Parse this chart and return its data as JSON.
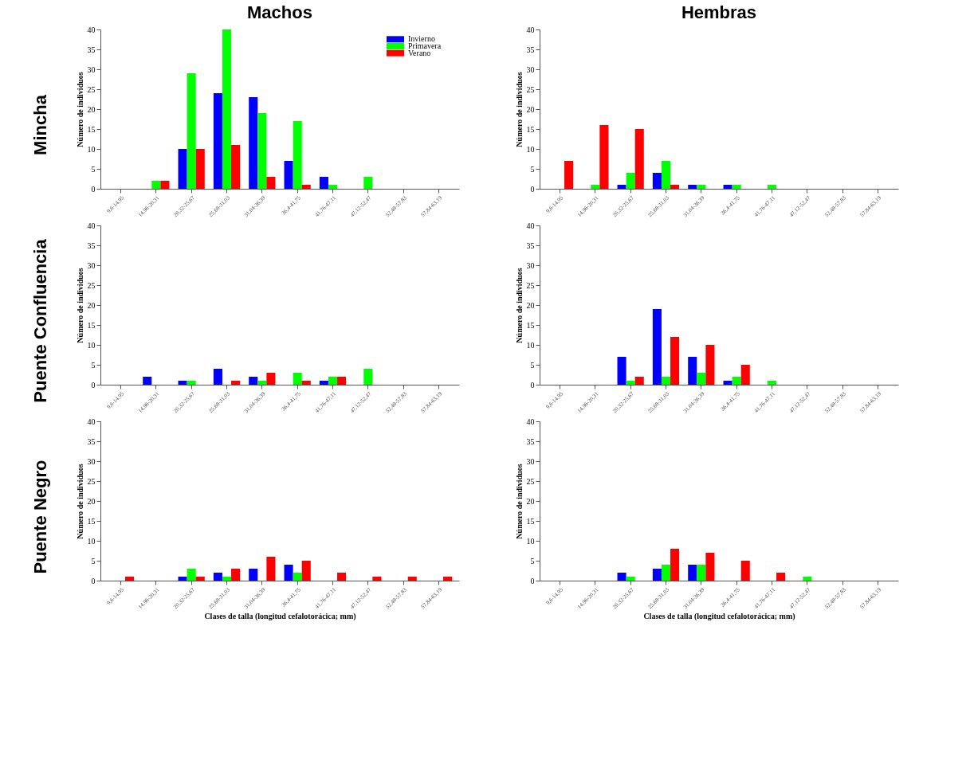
{
  "chart_data": [
    {
      "type": "bar",
      "title": "Machos",
      "annotations": [
        "Mincha"
      ],
      "ylabel": "Número de individuos",
      "categories": [
        "9,6-14,95",
        "14,96-20,31",
        "20,32-25,67",
        "25,68-31,03",
        "31,04-36,39",
        "36,4-41,75",
        "41,76-47,11",
        "47,12-52,47",
        "52,48-57,83",
        "57,84-63,19"
      ],
      "ylim": [
        0,
        40
      ],
      "yticks": [
        0,
        5,
        10,
        15,
        20,
        25,
        30,
        35,
        40
      ],
      "grid": false,
      "legend": "top right",
      "series": [
        {
          "name": "Invierno",
          "color": "#0000ff",
          "values": [
            0,
            0,
            10,
            24,
            23,
            7,
            3,
            0,
            0,
            0
          ]
        },
        {
          "name": "Primavera",
          "color": "#00ff00",
          "values": [
            0,
            2,
            29,
            40,
            19,
            17,
            1,
            3,
            0,
            0
          ]
        },
        {
          "name": "Verano",
          "color": "#ff0000",
          "values": [
            0,
            2,
            10,
            11,
            3,
            1,
            0,
            0,
            0,
            0
          ]
        }
      ]
    },
    {
      "type": "bar",
      "title": "Hembras",
      "ylabel": "Número de individuos",
      "categories": [
        "9,6-14,95",
        "14,96-20,31",
        "20,32-25,67",
        "25,68-31,03",
        "31,04-36,39",
        "36,4-41,75",
        "41,76-47,11",
        "47,12-52,47",
        "52,48-57,83",
        "57,84-63,19"
      ],
      "ylim": [
        0,
        40
      ],
      "yticks": [
        0,
        5,
        10,
        15,
        20,
        25,
        30,
        35,
        40
      ],
      "grid": false,
      "series": [
        {
          "color": "#0000ff",
          "values": [
            0,
            0,
            1,
            4,
            1,
            1,
            0,
            0,
            0,
            0
          ]
        },
        {
          "color": "#00ff00",
          "values": [
            0,
            1,
            4,
            7,
            1,
            1,
            1,
            0,
            0,
            0
          ]
        },
        {
          "color": "#ff0000",
          "values": [
            7,
            16,
            15,
            1,
            0,
            0,
            0,
            0,
            0,
            0
          ]
        }
      ]
    },
    {
      "type": "bar",
      "annotations": [
        "Puente Confluencia"
      ],
      "ylabel": "Número de individuos",
      "categories": [
        "9,6-14,95",
        "14,96-20,31",
        "20,32-25,67",
        "25,68-31,03",
        "31,04-36,39",
        "36,4-41,75",
        "41,76-47,11",
        "47,12-52,47",
        "52,48-57,83",
        "57,84-63,19"
      ],
      "ylim": [
        0,
        40
      ],
      "yticks": [
        0,
        5,
        10,
        15,
        20,
        25,
        30,
        35,
        40
      ],
      "grid": false,
      "series": [
        {
          "color": "#0000ff",
          "values": [
            0,
            2,
            1,
            4,
            2,
            0,
            1,
            0,
            0,
            0
          ]
        },
        {
          "color": "#00ff00",
          "values": [
            0,
            0,
            1,
            0,
            1,
            3,
            2,
            4,
            0,
            0
          ]
        },
        {
          "color": "#ff0000",
          "values": [
            0,
            0,
            0,
            1,
            3,
            1,
            2,
            0,
            0,
            0
          ]
        }
      ]
    },
    {
      "type": "bar",
      "ylabel": "Número de individuos",
      "categories": [
        "9,6-14,95",
        "14,96-20,31",
        "20,32-25,67",
        "25,68-31,03",
        "31,04-36,39",
        "36,4-41,75",
        "41,76-47,11",
        "47,12-52,47",
        "52,48-57,83",
        "57,84-63,19"
      ],
      "ylim": [
        0,
        40
      ],
      "yticks": [
        0,
        5,
        10,
        15,
        20,
        25,
        30,
        35,
        40
      ],
      "grid": false,
      "series": [
        {
          "color": "#0000ff",
          "values": [
            0,
            0,
            7,
            19,
            7,
            1,
            0,
            0,
            0,
            0
          ]
        },
        {
          "color": "#00ff00",
          "values": [
            0,
            0,
            1,
            2,
            3,
            2,
            1,
            0,
            0,
            0
          ]
        },
        {
          "color": "#ff0000",
          "values": [
            0,
            0,
            2,
            12,
            10,
            5,
            0,
            0,
            0,
            0
          ]
        }
      ]
    },
    {
      "type": "bar",
      "annotations": [
        "Puente Negro"
      ],
      "xlabel": "Clases de talla (longitud cefalotorácica; mm)",
      "ylabel": "Número de individuos",
      "categories": [
        "9,6-14,95",
        "14,96-20,31",
        "20,32-25,67",
        "25,68-31,03",
        "31,04-36,39",
        "36,4-41,75",
        "41,76-47,11",
        "47,12-52,47",
        "52,48-57,83",
        "57,84-63,19"
      ],
      "ylim": [
        0,
        40
      ],
      "yticks": [
        0,
        5,
        10,
        15,
        20,
        25,
        30,
        35,
        40
      ],
      "grid": false,
      "series": [
        {
          "color": "#0000ff",
          "values": [
            0,
            0,
            1,
            2,
            3,
            4,
            0,
            0,
            0,
            0
          ]
        },
        {
          "color": "#00ff00",
          "values": [
            0,
            0,
            3,
            1,
            0,
            2,
            0,
            0,
            0,
            0
          ]
        },
        {
          "color": "#ff0000",
          "values": [
            1,
            0,
            1,
            3,
            6,
            5,
            2,
            1,
            1,
            1
          ]
        }
      ]
    },
    {
      "type": "bar",
      "xlabel": "Clases de talla (longitud cefalotorácica; mm)",
      "ylabel": "Número de individuos",
      "categories": [
        "9,6-14,95",
        "14,96-20,31",
        "20,32-25,67",
        "25,68-31,03",
        "31,04-36,39",
        "36,4-41,75",
        "41,76-47,11",
        "47,12-52,47",
        "52,48-57,83",
        "57,84-63,19"
      ],
      "ylim": [
        0,
        40
      ],
      "yticks": [
        0,
        5,
        10,
        15,
        20,
        25,
        30,
        35,
        40
      ],
      "grid": false,
      "series": [
        {
          "color": "#0000ff",
          "values": [
            0,
            0,
            2,
            3,
            4,
            0,
            0,
            0,
            0,
            0
          ]
        },
        {
          "color": "#00ff00",
          "values": [
            0,
            0,
            1,
            4,
            4,
            0,
            0,
            1,
            0,
            0
          ]
        },
        {
          "color": "#ff0000",
          "values": [
            0,
            0,
            0,
            8,
            7,
            5,
            2,
            0,
            0,
            0
          ]
        }
      ]
    }
  ]
}
